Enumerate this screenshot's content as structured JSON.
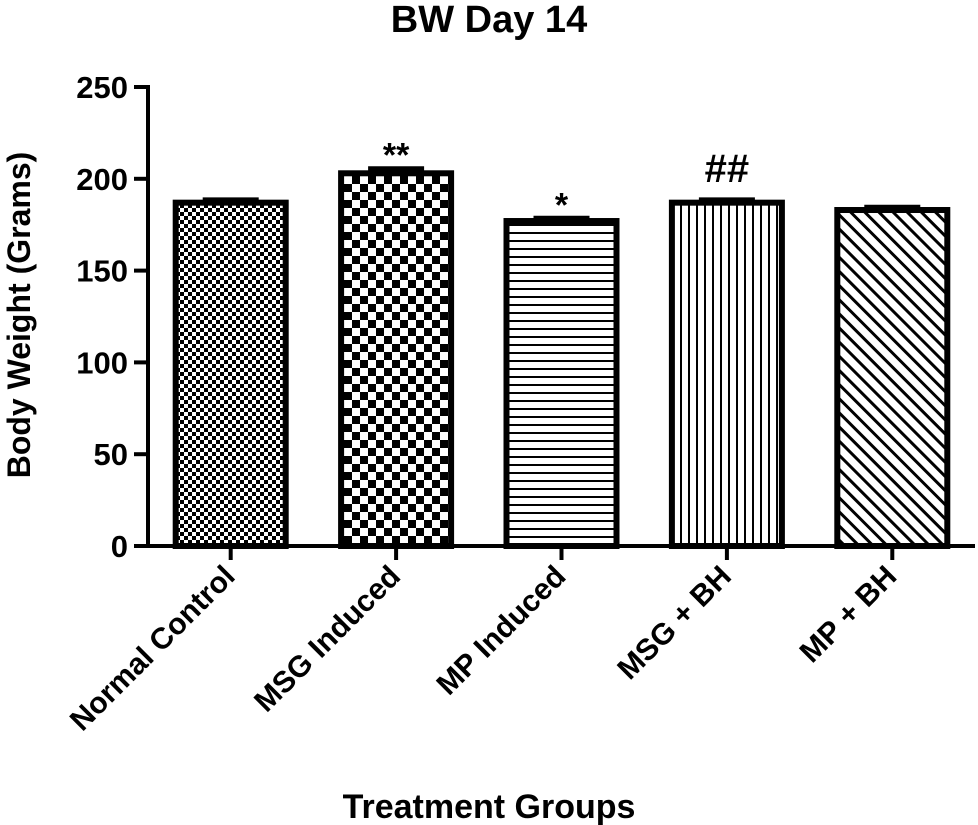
{
  "chart_data": {
    "type": "bar",
    "title": "BW Day 14",
    "xlabel": "Treatment Groups",
    "ylabel": "Body Weight (Grams)",
    "ylim": [
      0,
      250
    ],
    "yticks": [
      0,
      50,
      100,
      150,
      200,
      250
    ],
    "grid": false,
    "categories": [
      "Normal Control",
      "MSG Induced",
      "MP Induced",
      "MSG + BH",
      "MP + BH"
    ],
    "values": [
      187,
      203,
      177,
      187,
      183
    ],
    "error": [
      1.5,
      2.5,
      1.5,
      1.5,
      1.5
    ],
    "annotations": [
      "",
      "**",
      "*",
      "##",
      ""
    ],
    "patterns": [
      "fine-checker",
      "checker",
      "horizontal-lines",
      "vertical-lines",
      "diagonal-lines"
    ],
    "colors": {
      "bar_stroke": "#000000",
      "bar_fill": "#ffffff"
    }
  }
}
